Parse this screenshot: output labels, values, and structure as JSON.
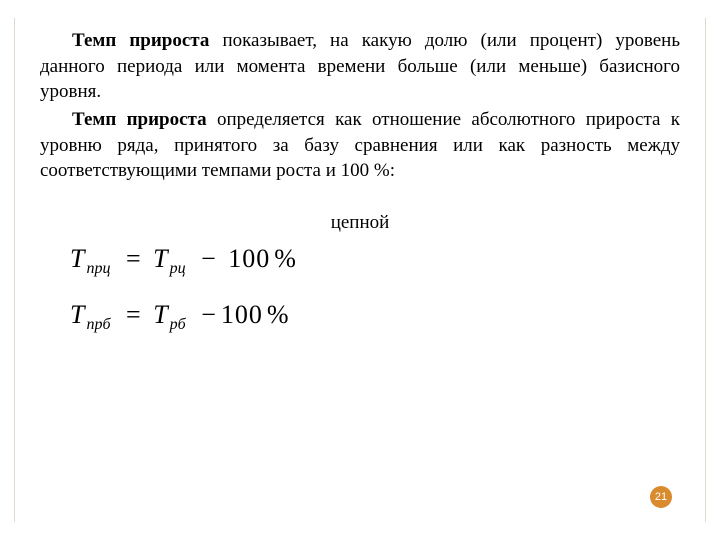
{
  "colors": {
    "background": "#ffffff",
    "text": "#000000",
    "decorative_line": "#e0d8cc",
    "page_badge_bg": "#d98b2e",
    "page_badge_text": "#ffffff"
  },
  "typography": {
    "body_font": "Times New Roman",
    "body_size_pt": 14,
    "formula_size_pt": 20,
    "sub_size_pt": 12,
    "page_badge_size_pt": 8
  },
  "para1_bold": "Темп прироста",
  "para1_rest": " показывает, на какую долю (или процент) уровень данного периода или момента времени больше (или меньше) базисного уровня.",
  "para2_bold": "Темп прироста",
  "para2_rest": " определяется как отношение абсолютного прироста к уровню ряда, принятого за базу сравнения или как разность между соответствующими темпами роста и 100 %:",
  "chain_label": "цепной",
  "formula1": {
    "lhs_var": "T",
    "lhs_sub": "прц",
    "rhs_var": "T",
    "rhs_sub": "рц",
    "minus": "−",
    "hundred": "100",
    "percent": "%"
  },
  "formula2": {
    "lhs_var": "T",
    "lhs_sub": "прб",
    "rhs_var": "T",
    "rhs_sub": "рб",
    "minus": "−",
    "hundred": "100",
    "percent": "%"
  },
  "page_number": "21"
}
